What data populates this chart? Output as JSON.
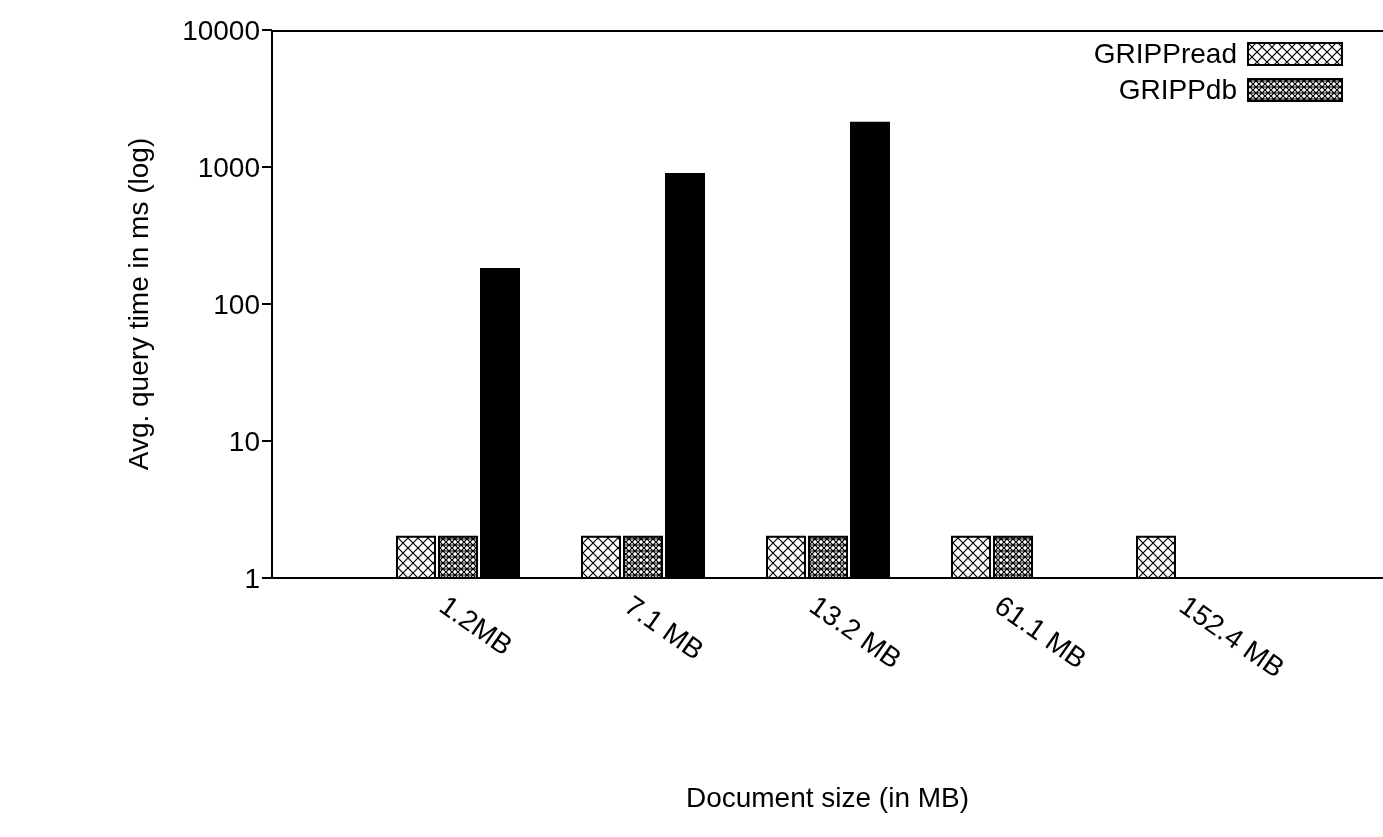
{
  "chart_data": {
    "type": "bar",
    "xlabel": "Document size (in MB)",
    "ylabel": "Avg. query time in ms (log)",
    "categories": [
      "1.2MB",
      "7.1 MB",
      "13.2 MB",
      "61.1 MB",
      "152.4 MB"
    ],
    "series": [
      {
        "name": "GRIPPread",
        "color": "#000000",
        "values": [
          2,
          2,
          2,
          2,
          2
        ]
      },
      {
        "name": "GRIPPdb",
        "color": "#000000",
        "values": [
          2,
          2,
          2,
          2,
          null
        ]
      },
      {
        "color": "#000000",
        "values": [
          180,
          890,
          2100,
          null,
          null
        ]
      }
    ],
    "log": true,
    "ylim": [
      1,
      10000
    ],
    "yticks": [
      1,
      10,
      100,
      1000,
      10000
    ],
    "legend": "top right"
  }
}
